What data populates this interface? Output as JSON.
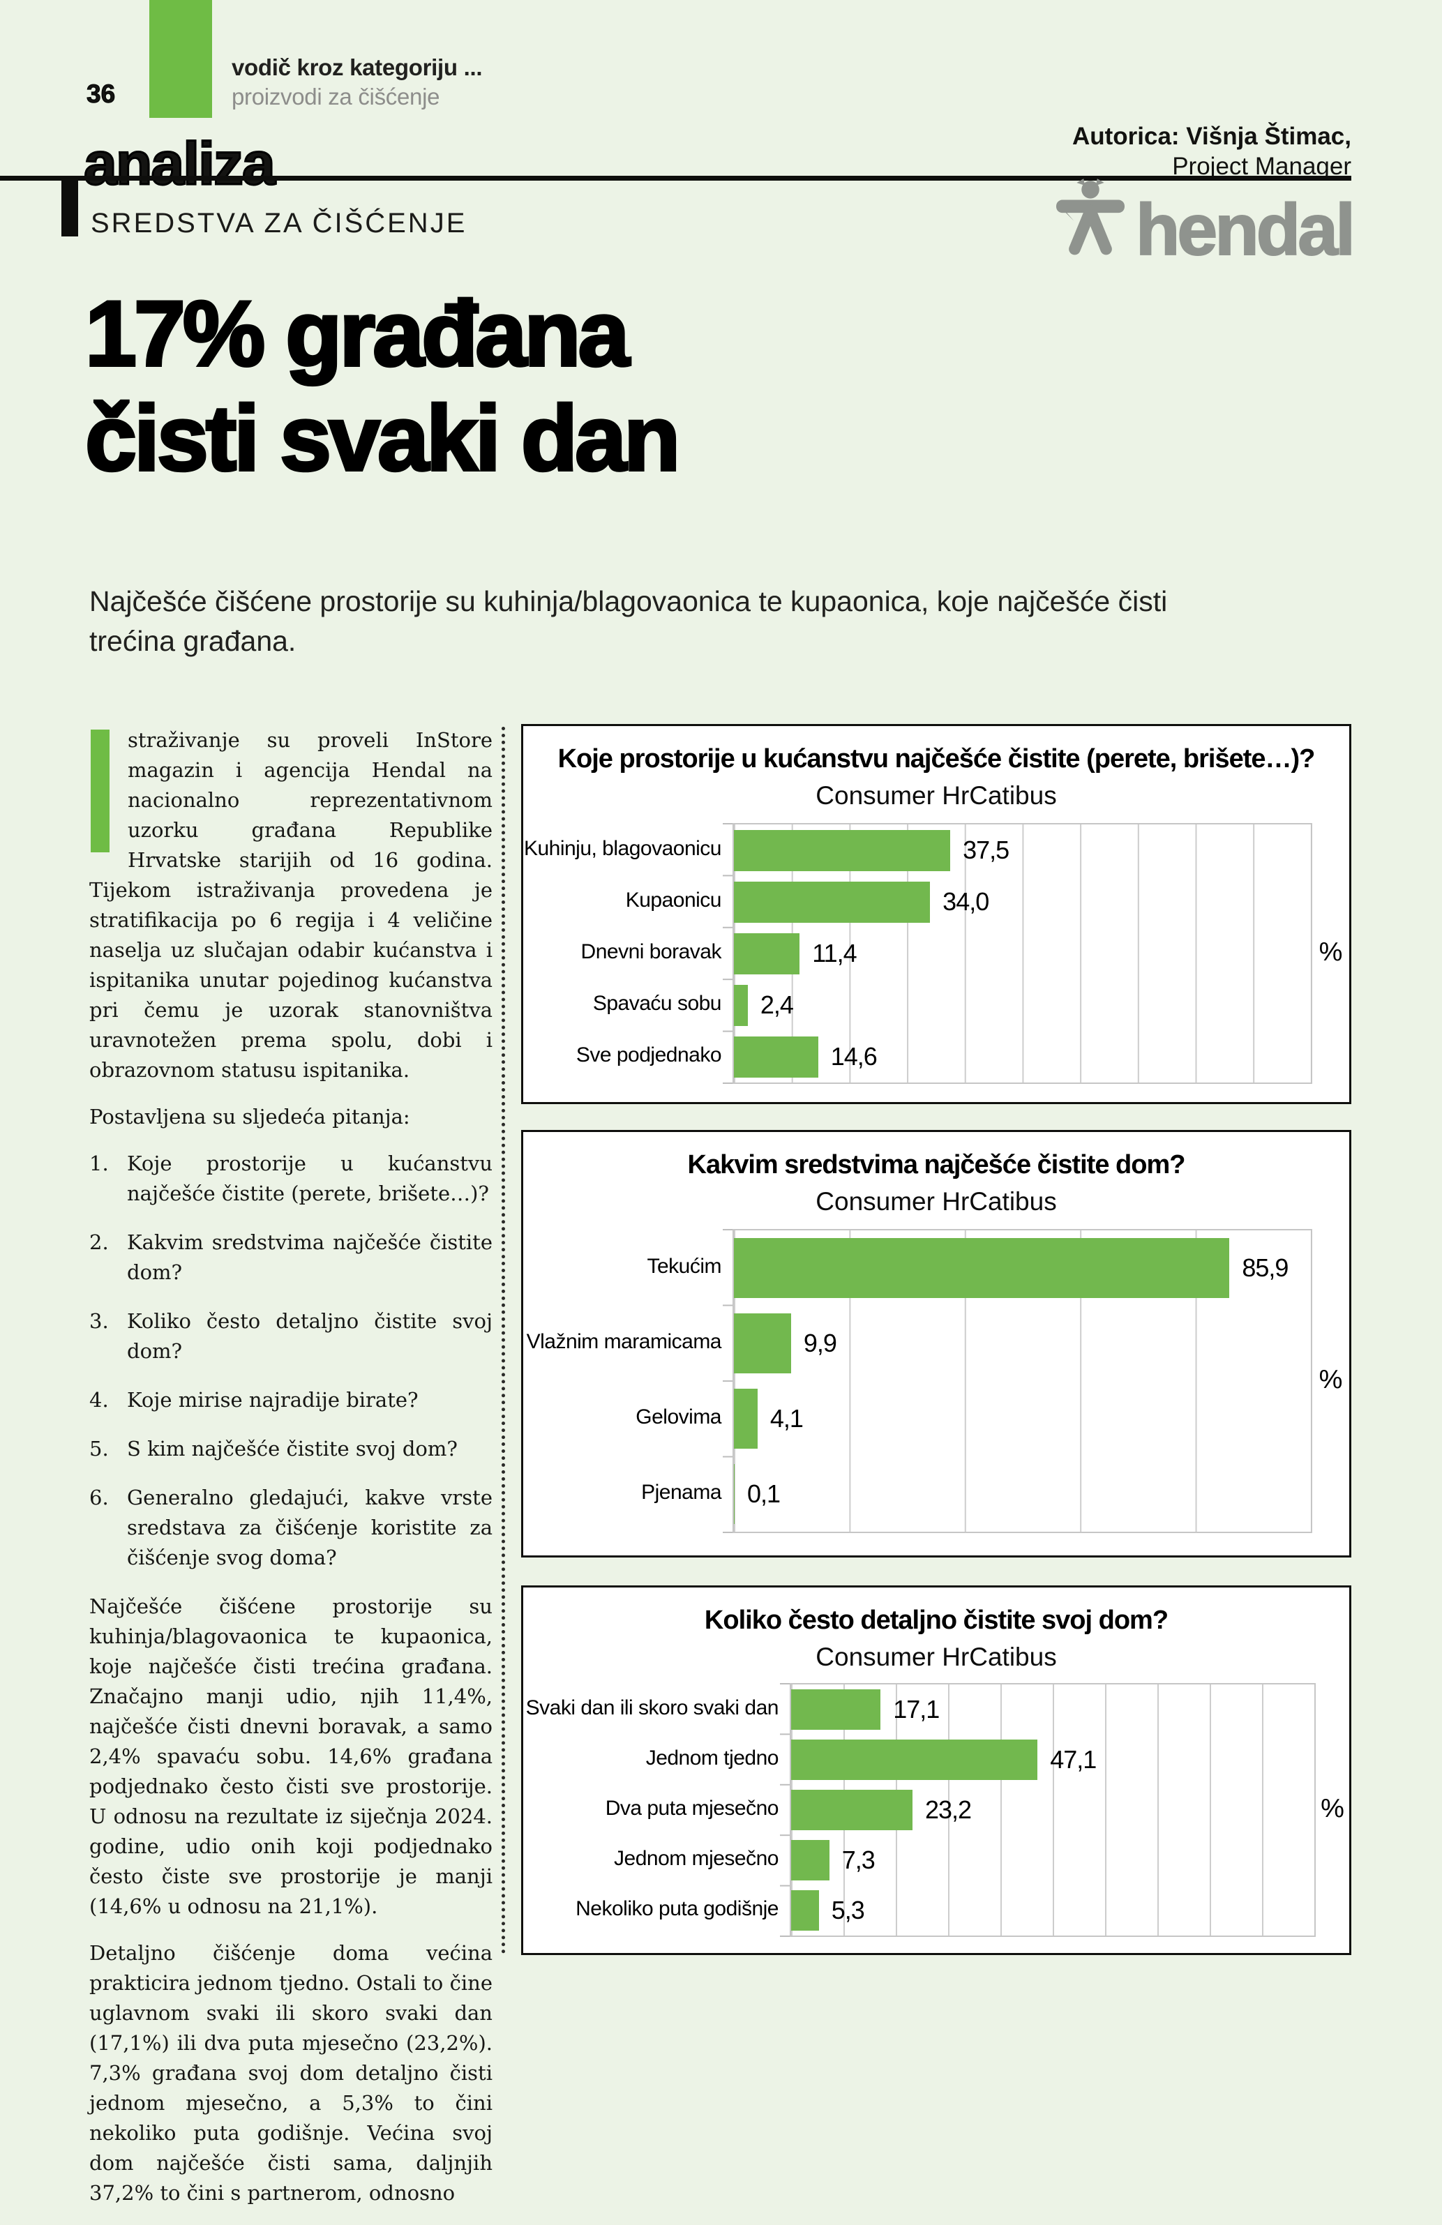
{
  "colors": {
    "page_background": "#ecf3e6",
    "accent_green": "#6fbc45",
    "bar_green": "#72b84e",
    "logo_gray": "#8f938e"
  },
  "header": {
    "page_number": "36",
    "kicker_line1": "vodič kroz kategoriju ...",
    "kicker_line2": "proizvodi za čišćenje",
    "section_title": "analiza",
    "author_bold": "Autorica: Višnja Štimac,",
    "author_role": "Project Manager",
    "category_kicker": "SREDSTVA ZA ČIŠĆENJE",
    "brand_name": "hendal"
  },
  "headline": {
    "line1": "17% građana",
    "line2": "čisti svaki dan"
  },
  "lede": "Najčešće čišćene prostorije su kuhinja/blagovaonica te kupaonica, koje najčešće čisti trećina građana.",
  "article": {
    "para1": "straživanje su proveli InStore magazin i agencija Hendal na nacionalno reprezentativnom uzorku građana Republike Hrvatske starijih od 16 godina. Tijekom istraživanja provedena je stratifikacija po 6 regija i 4 veličine naselja uz slučajan odabir kućanstva i ispitanika unutar pojedinog kućanstva pri čemu je uzorak stanovništva uravnotežen prema spolu, dobi i obrazovnom statusu ispitanika.",
    "questions_intro": "Postavljena su sljedeća pitanja:",
    "questions": [
      "Koje prostorije u kućanstvu najčešće čistite (perete, brišete…)?",
      "Kakvim sredstvima najčešće čistite dom?",
      "Koliko često detaljno čistite svoj dom?",
      "Koje mirise najradije birate?",
      "S kim najčešće čistite svoj dom?",
      "Generalno gledajući, kakve vrste sredstava za čišćenje koristite za čišćenje svog doma?"
    ],
    "para2": "Najčešće čišćene prostorije su kuhinja/blagovaonica te kupaonica, koje najčešće čisti trećina građana. Značajno manji udio, njih 11,4%, najčešće čisti dnevni boravak, a samo 2,4% spavaću sobu. 14,6% građana podjednako često čisti sve prostorije. U odnosu na rezultate iz siječnja 2024. godine, udio onih koji podjednako često čiste sve prostorije je manji (14,6% u odnosu na 21,1%).",
    "para3": "Detaljno čišćenje doma većina prakticira jednom tjedno. Ostali to čine uglavnom svaki ili skoro svaki dan (17,1%) ili dva puta mjesečno (23,2%). 7,3% građana svoj dom detaljno čisti jednom mjesečno, a 5,3% to čini nekoliko puta godišnje. Većina svoj dom najčešće čisti sama, daljnjih 37,2% to čini s partnerom, odnosno"
  },
  "chart_data": [
    {
      "type": "bar",
      "orientation": "horizontal",
      "title": "Koje prostorije u kućanstvu najčešće čistite (perete, brišete…)?",
      "subtitle": "Consumer HrCatibus",
      "categories": [
        "Kuhinju, blagovaonicu",
        "Kupaonicu",
        "Dnevni boravak",
        "Spavaću sobu",
        "Sve podjednako"
      ],
      "values": [
        37.5,
        34.0,
        11.4,
        2.4,
        14.6
      ],
      "value_labels": [
        "37,5",
        "34,0",
        "11,4",
        "2,4",
        "14,6"
      ],
      "unit": "%",
      "xlim": [
        0,
        100
      ],
      "grid_step_pct": 10,
      "grid": true,
      "legend": false,
      "bar_color": "#72b84e"
    },
    {
      "type": "bar",
      "orientation": "horizontal",
      "title": "Kakvim sredstvima najčešće čistite dom?",
      "subtitle": "Consumer HrCatibus",
      "categories": [
        "Tekućim",
        "Vlažnim maramicama",
        "Gelovima",
        "Pjenama"
      ],
      "values": [
        85.9,
        9.9,
        4.1,
        0.1
      ],
      "value_labels": [
        "85,9",
        "9,9",
        "4,1",
        "0,1"
      ],
      "unit": "%",
      "xlim": [
        0,
        100
      ],
      "grid_step_pct": 20,
      "grid": true,
      "legend": false,
      "bar_color": "#72b84e"
    },
    {
      "type": "bar",
      "orientation": "horizontal",
      "title": "Koliko često detaljno čistite svoj dom?",
      "subtitle": "Consumer HrCatibus",
      "categories": [
        "Svaki dan ili skoro svaki dan",
        "Jednom tjedno",
        "Dva puta mjesečno",
        "Jednom mjesečno",
        "Nekoliko puta godišnje"
      ],
      "values": [
        17.1,
        47.1,
        23.2,
        7.3,
        5.3
      ],
      "value_labels": [
        "17,1",
        "47,1",
        "23,2",
        "7,3",
        "5,3"
      ],
      "unit": "%",
      "xlim": [
        0,
        100
      ],
      "grid_step_pct": 10,
      "grid": true,
      "legend": false,
      "bar_color": "#72b84e"
    }
  ]
}
